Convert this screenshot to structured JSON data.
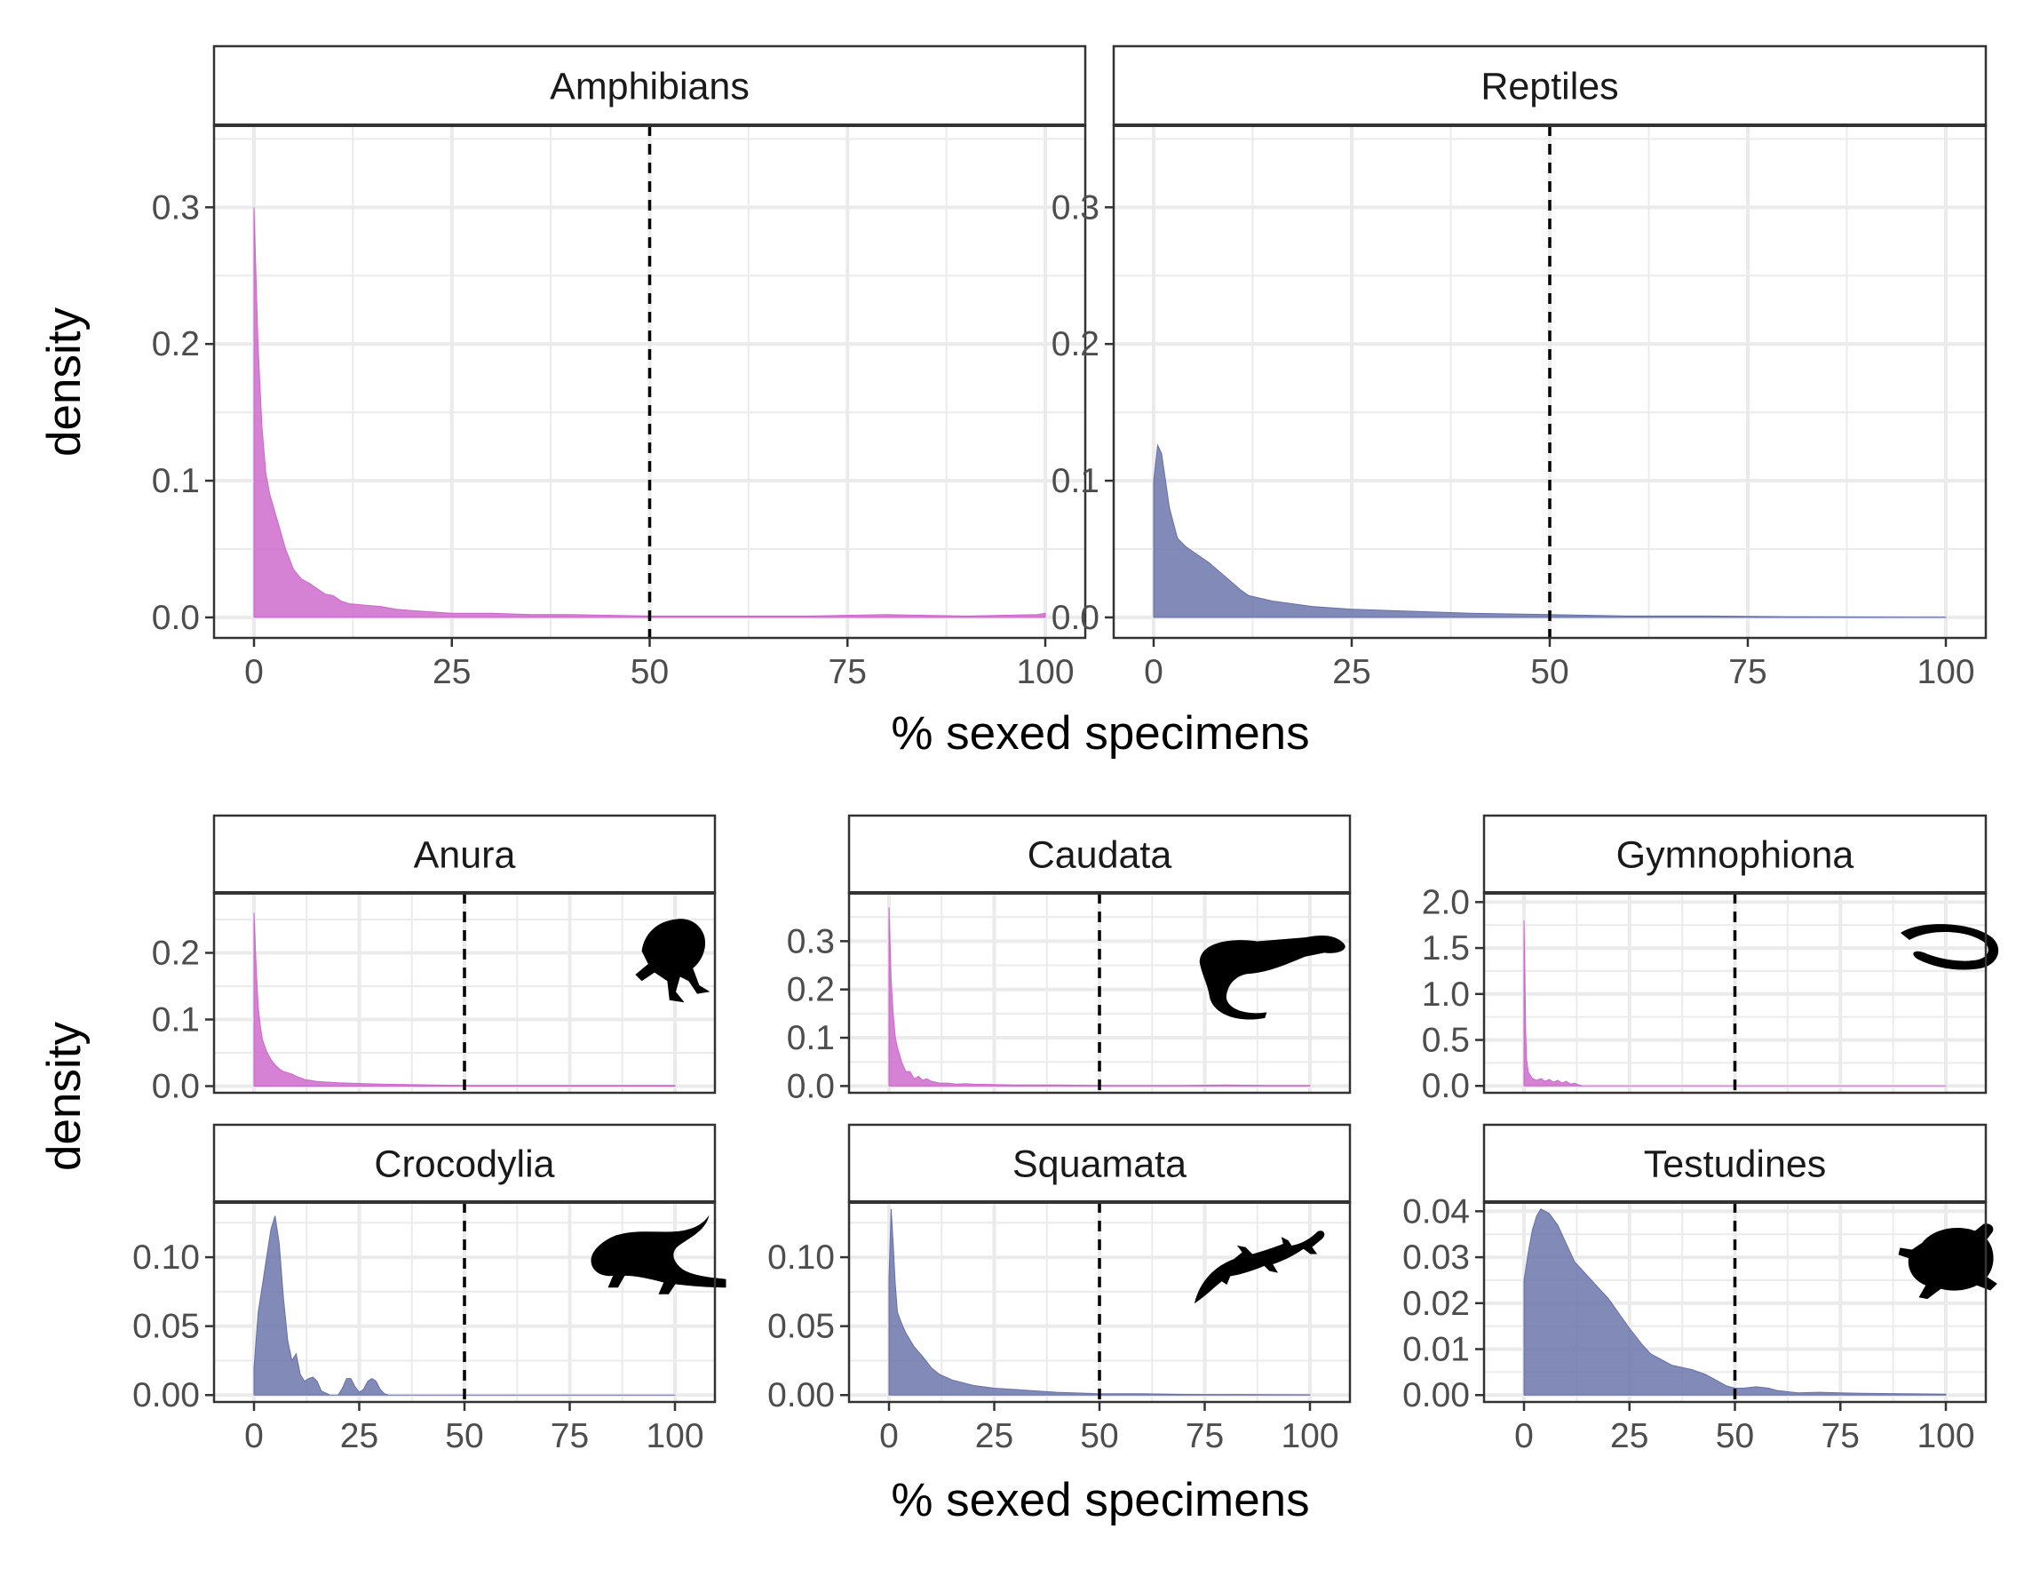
{
  "chart_data": [
    {
      "type": "area",
      "facet": "Amphibians",
      "color": "#cc66cc",
      "xlim": [
        0,
        100
      ],
      "ylim": [
        -0.015,
        0.36
      ],
      "xticks": [
        0,
        25,
        50,
        75,
        100
      ],
      "yticks": [
        0.0,
        0.1,
        0.2,
        0.3
      ],
      "ytick_labels": [
        "0.0",
        "0.1",
        "0.2",
        "0.3"
      ],
      "reference_line_x": 50,
      "x": [
        0,
        0.5,
        1,
        1.5,
        2,
        3,
        4,
        5,
        6,
        7,
        8,
        9,
        10,
        11,
        12,
        14,
        16,
        18,
        20,
        25,
        30,
        35,
        40,
        50,
        60,
        70,
        80,
        90,
        99,
        100
      ],
      "y": [
        0.3,
        0.2,
        0.14,
        0.105,
        0.09,
        0.07,
        0.05,
        0.035,
        0.028,
        0.025,
        0.021,
        0.017,
        0.016,
        0.012,
        0.01,
        0.009,
        0.008,
        0.006,
        0.005,
        0.003,
        0.003,
        0.002,
        0.002,
        0.001,
        0.001,
        0.001,
        0.002,
        0.001,
        0.002,
        0.003
      ]
    },
    {
      "type": "area",
      "facet": "Reptiles",
      "color": "#6670a8",
      "xlim": [
        0,
        100
      ],
      "ylim": [
        -0.015,
        0.36
      ],
      "xticks": [
        0,
        25,
        50,
        75,
        100
      ],
      "yticks": [
        0.0,
        0.1,
        0.2,
        0.3
      ],
      "reference_line_x": 50,
      "x": [
        0,
        0.5,
        1,
        1.5,
        2,
        3,
        4,
        5,
        7,
        9,
        11,
        12,
        15,
        20,
        25,
        30,
        40,
        50,
        60,
        70,
        80,
        90,
        100
      ],
      "y": [
        0.1,
        0.126,
        0.12,
        0.1,
        0.08,
        0.058,
        0.052,
        0.048,
        0.04,
        0.03,
        0.02,
        0.016,
        0.012,
        0.008,
        0.006,
        0.005,
        0.003,
        0.002,
        0.001,
        0.001,
        0.0005,
        0.0003,
        0.0002
      ]
    },
    {
      "type": "area",
      "facet": "Anura",
      "color": "#cc66cc",
      "xlim": [
        0,
        100
      ],
      "ylim": [
        -0.01,
        0.29
      ],
      "xticks": [
        0,
        25,
        50,
        75,
        100
      ],
      "yticks": [
        0.0,
        0.1,
        0.2
      ],
      "ytick_labels": [
        "0.0",
        "0.1",
        "0.2"
      ],
      "reference_line_x": 50,
      "x": [
        0,
        0.5,
        1,
        1.5,
        2,
        3,
        4,
        5,
        6,
        7,
        8,
        9,
        10,
        12,
        15,
        20,
        25,
        30,
        40,
        50,
        60,
        70,
        80,
        90,
        100
      ],
      "y": [
        0.26,
        0.18,
        0.12,
        0.09,
        0.07,
        0.052,
        0.04,
        0.032,
        0.026,
        0.022,
        0.02,
        0.018,
        0.015,
        0.01,
        0.007,
        0.005,
        0.004,
        0.003,
        0.002,
        0.001,
        0.001,
        0.001,
        0.001,
        0.001,
        0.001
      ]
    },
    {
      "type": "area",
      "facet": "Caudata",
      "color": "#cc66cc",
      "xlim": [
        0,
        100
      ],
      "ylim": [
        -0.014,
        0.4
      ],
      "xticks": [
        0,
        25,
        50,
        75,
        100
      ],
      "yticks": [
        0.0,
        0.1,
        0.2,
        0.3
      ],
      "ytick_labels": [
        "0.0",
        "0.1",
        "0.2",
        "0.3"
      ],
      "reference_line_x": 50,
      "x": [
        0,
        0.5,
        1,
        1.5,
        2,
        3,
        4,
        5,
        6,
        7,
        8,
        9,
        10,
        11,
        12,
        14,
        16,
        18,
        20,
        25,
        30,
        40,
        50,
        60,
        70,
        80,
        90,
        100
      ],
      "y": [
        0.37,
        0.22,
        0.15,
        0.1,
        0.08,
        0.05,
        0.03,
        0.03,
        0.015,
        0.02,
        0.012,
        0.015,
        0.01,
        0.008,
        0.006,
        0.006,
        0.004,
        0.005,
        0.004,
        0.003,
        0.002,
        0.002,
        0.001,
        0.001,
        0.001,
        0.002,
        0.001,
        0.001
      ]
    },
    {
      "type": "area",
      "facet": "Gymnophiona",
      "color": "#cc66cc",
      "xlim": [
        0,
        100
      ],
      "ylim": [
        -0.075,
        2.1
      ],
      "xticks": [
        0,
        25,
        50,
        75,
        100
      ],
      "yticks": [
        0.0,
        0.5,
        1.0,
        1.5,
        2.0
      ],
      "ytick_labels": [
        "0.0",
        "0.5",
        "1.0",
        "1.5",
        "2.0"
      ],
      "reference_line_x": 50,
      "x": [
        0,
        0.2,
        0.4,
        0.6,
        1,
        2,
        3,
        4,
        5,
        6,
        7,
        8,
        9,
        10,
        11,
        12,
        13,
        14,
        100
      ],
      "y": [
        1.8,
        1.2,
        0.6,
        0.3,
        0.15,
        0.08,
        0.06,
        0.08,
        0.05,
        0.07,
        0.04,
        0.06,
        0.03,
        0.05,
        0.02,
        0.03,
        0.01,
        0.0,
        0.0
      ]
    },
    {
      "type": "area",
      "facet": "Crocodylia",
      "color": "#6670a8",
      "xlim": [
        0,
        100
      ],
      "ylim": [
        -0.005,
        0.14
      ],
      "xticks": [
        0,
        25,
        50,
        75,
        100
      ],
      "yticks": [
        0.0,
        0.05,
        0.1
      ],
      "ytick_labels": [
        "0.00",
        "0.05",
        "0.10"
      ],
      "reference_line_x": 50,
      "x": [
        0,
        1,
        2,
        3,
        4,
        5,
        6,
        7,
        8,
        9,
        10,
        11,
        12,
        13,
        14,
        15,
        16,
        18,
        20,
        21,
        22,
        23,
        24,
        25,
        26,
        27,
        28,
        29,
        30,
        31,
        32,
        100
      ],
      "y": [
        0.02,
        0.06,
        0.08,
        0.1,
        0.12,
        0.13,
        0.11,
        0.07,
        0.04,
        0.025,
        0.03,
        0.015,
        0.01,
        0.012,
        0.013,
        0.01,
        0.003,
        0.0,
        0.0,
        0.005,
        0.012,
        0.012,
        0.006,
        0.002,
        0.004,
        0.01,
        0.012,
        0.01,
        0.004,
        0.001,
        0.0,
        0.0
      ]
    },
    {
      "type": "area",
      "facet": "Squamata",
      "color": "#6670a8",
      "xlim": [
        0,
        100
      ],
      "ylim": [
        -0.005,
        0.14
      ],
      "xticks": [
        0,
        25,
        50,
        75,
        100
      ],
      "yticks": [
        0.0,
        0.05,
        0.1
      ],
      "ytick_labels": [
        "0.00",
        "0.05",
        "0.10"
      ],
      "reference_line_x": 50,
      "x": [
        0,
        0.5,
        1,
        1.5,
        2,
        3,
        4,
        5,
        6,
        8,
        10,
        12,
        15,
        20,
        25,
        30,
        35,
        40,
        50,
        60,
        70,
        80,
        90,
        100
      ],
      "y": [
        0.085,
        0.135,
        0.11,
        0.08,
        0.06,
        0.052,
        0.045,
        0.04,
        0.035,
        0.028,
        0.02,
        0.015,
        0.011,
        0.007,
        0.005,
        0.004,
        0.003,
        0.002,
        0.001,
        0.001,
        0.0005,
        0.0004,
        0.0003,
        0.0002
      ]
    },
    {
      "type": "area",
      "facet": "Testudines",
      "color": "#6670a8",
      "xlim": [
        0,
        100
      ],
      "ylim": [
        -0.0015,
        0.042
      ],
      "xticks": [
        0,
        25,
        50,
        75,
        100
      ],
      "yticks": [
        0.0,
        0.01,
        0.02,
        0.03,
        0.04
      ],
      "ytick_labels": [
        "0.00",
        "0.01",
        "0.02",
        "0.03",
        "0.04"
      ],
      "reference_line_x": 50,
      "x": [
        0,
        1,
        2,
        3,
        4,
        5,
        6,
        8,
        10,
        12,
        15,
        18,
        20,
        25,
        28,
        30,
        35,
        40,
        43,
        45,
        48,
        50,
        52,
        55,
        58,
        60,
        65,
        70,
        75,
        80,
        90,
        100
      ],
      "y": [
        0.025,
        0.031,
        0.036,
        0.039,
        0.0405,
        0.04,
        0.0395,
        0.037,
        0.033,
        0.029,
        0.026,
        0.023,
        0.021,
        0.0145,
        0.011,
        0.009,
        0.0065,
        0.0055,
        0.0045,
        0.0035,
        0.002,
        0.0015,
        0.0015,
        0.0018,
        0.0015,
        0.001,
        0.0005,
        0.0006,
        0.0005,
        0.0004,
        0.0003,
        0.0002
      ]
    }
  ],
  "axis_labels": {
    "top_x": "% sexed specimens",
    "top_y": "density",
    "bottom_x": "% sexed specimens",
    "bottom_y": "density"
  },
  "silhouette_icons": [
    "frog-icon",
    "salamander-icon",
    "caecilian-icon",
    "crocodile-icon",
    "lizard-icon",
    "turtle-icon"
  ]
}
